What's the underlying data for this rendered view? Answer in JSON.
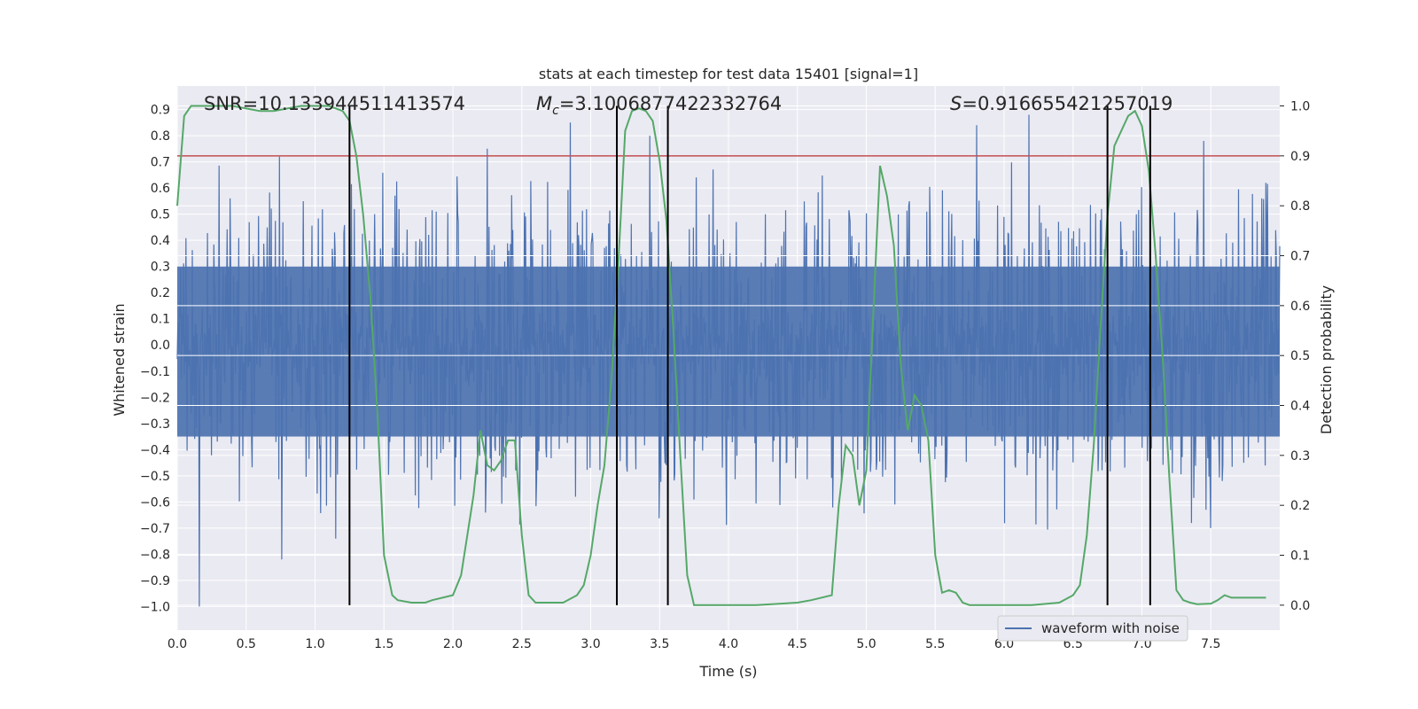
{
  "chart_data": {
    "type": "line",
    "title": "stats at each timestep for test data 15401 [signal=1]",
    "xlabel": "Time (s)",
    "ylabel": "Whitened strain",
    "y2label": "Detection probability",
    "xlim": [
      0.0,
      8.0
    ],
    "ylim": [
      -1.09,
      0.99
    ],
    "y2lim": [
      -0.05,
      1.04
    ],
    "xticks": [
      "0.0",
      "0.5",
      "1.0",
      "1.5",
      "2.0",
      "2.5",
      "3.0",
      "3.5",
      "4.0",
      "4.5",
      "5.0",
      "5.5",
      "6.0",
      "6.5",
      "7.0",
      "7.5"
    ],
    "yticks": [
      "0.9",
      "0.8",
      "0.7",
      "0.6",
      "0.5",
      "0.4",
      "0.3",
      "0.2",
      "0.1",
      "0.0",
      "−0.1",
      "−0.2",
      "−0.3",
      "−0.4",
      "−0.5",
      "−0.6",
      "−0.7",
      "−0.8",
      "−0.9",
      "−1.0"
    ],
    "y2ticks": [
      "1.0",
      "0.9",
      "0.8",
      "0.7",
      "0.6",
      "0.5",
      "0.4",
      "0.3",
      "0.2",
      "0.1",
      "0.0"
    ],
    "annotations": {
      "snr": "SNR=10.133944511413574",
      "mc_symbol": "M",
      "mc_sub": "c",
      "mc_value": "=3.1006877422332764",
      "s_symbol": "S",
      "s_value": "=0.916655421257019"
    },
    "legend": {
      "label": "waveform with noise",
      "location": "lower-right"
    },
    "threshold": {
      "value": 0.9,
      "axis": "y2",
      "color": "#c44e52"
    },
    "vlines": [
      1.25,
      3.19,
      3.56,
      6.75,
      7.06
    ],
    "waveform": {
      "name": "waveform with noise",
      "color": "#4c72b0",
      "t_range": [
        0.0,
        8.0
      ],
      "bulk_range": [
        -0.35,
        0.3
      ],
      "spikes": [
        {
          "t": 0.16,
          "y": -1.0
        },
        {
          "t": 0.76,
          "y": -0.82
        },
        {
          "t": 0.74,
          "y": 0.72
        },
        {
          "t": 1.15,
          "y": -0.74
        },
        {
          "t": 2.25,
          "y": 0.75
        },
        {
          "t": 2.85,
          "y": 0.85
        },
        {
          "t": 3.43,
          "y": 0.8
        },
        {
          "t": 5.8,
          "y": 0.84
        },
        {
          "t": 6.18,
          "y": 0.88
        },
        {
          "t": 7.45,
          "y": 0.78
        },
        {
          "t": 7.9,
          "y": 0.62
        },
        {
          "t": 7.5,
          "y": -0.7
        }
      ]
    },
    "probability": {
      "color": "#55a868",
      "x": [
        0.0,
        0.05,
        0.1,
        0.2,
        0.4,
        0.6,
        0.7,
        0.9,
        1.0,
        1.1,
        1.2,
        1.25,
        1.3,
        1.35,
        1.4,
        1.45,
        1.5,
        1.56,
        1.6,
        1.7,
        1.8,
        1.85,
        2.0,
        2.06,
        2.15,
        2.2,
        2.25,
        2.3,
        2.35,
        2.4,
        2.45,
        2.5,
        2.55,
        2.6,
        2.65,
        2.7,
        2.8,
        2.9,
        2.95,
        3.0,
        3.05,
        3.1,
        3.15,
        3.2,
        3.25,
        3.3,
        3.35,
        3.4,
        3.45,
        3.5,
        3.55,
        3.6,
        3.65,
        3.7,
        3.75,
        3.8,
        4.0,
        4.2,
        4.5,
        4.6,
        4.75,
        4.8,
        4.85,
        4.9,
        4.95,
        5.0,
        5.05,
        5.1,
        5.15,
        5.2,
        5.25,
        5.3,
        5.35,
        5.4,
        5.45,
        5.5,
        5.55,
        5.6,
        5.65,
        5.7,
        5.75,
        5.8,
        6.0,
        6.2,
        6.4,
        6.5,
        6.55,
        6.6,
        6.65,
        6.7,
        6.75,
        6.8,
        6.85,
        6.9,
        6.95,
        7.0,
        7.05,
        7.1,
        7.15,
        7.2,
        7.25,
        7.3,
        7.35,
        7.4,
        7.5,
        7.55,
        7.6,
        7.65,
        7.7,
        7.8,
        7.9
      ],
      "y": [
        0.8,
        0.98,
        1.0,
        1.0,
        1.0,
        0.99,
        0.99,
        1.0,
        1.0,
        1.0,
        0.99,
        0.97,
        0.9,
        0.78,
        0.62,
        0.4,
        0.1,
        0.02,
        0.01,
        0.005,
        0.005,
        0.01,
        0.02,
        0.06,
        0.22,
        0.35,
        0.28,
        0.27,
        0.29,
        0.33,
        0.33,
        0.14,
        0.02,
        0.005,
        0.005,
        0.005,
        0.005,
        0.02,
        0.04,
        0.1,
        0.2,
        0.28,
        0.45,
        0.68,
        0.95,
        0.99,
        0.995,
        0.99,
        0.97,
        0.89,
        0.77,
        0.55,
        0.3,
        0.06,
        0.0,
        0.0,
        0.0,
        0.0,
        0.005,
        0.01,
        0.02,
        0.2,
        0.32,
        0.3,
        0.2,
        0.27,
        0.58,
        0.88,
        0.82,
        0.72,
        0.48,
        0.35,
        0.42,
        0.4,
        0.33,
        0.1,
        0.025,
        0.03,
        0.025,
        0.005,
        0.0,
        0.0,
        0.0,
        0.0,
        0.005,
        0.02,
        0.04,
        0.14,
        0.32,
        0.56,
        0.78,
        0.92,
        0.95,
        0.98,
        0.99,
        0.96,
        0.87,
        0.7,
        0.5,
        0.25,
        0.03,
        0.01,
        0.005,
        0.002,
        0.003,
        0.01,
        0.02,
        0.015,
        0.015,
        0.015,
        0.015
      ]
    }
  }
}
